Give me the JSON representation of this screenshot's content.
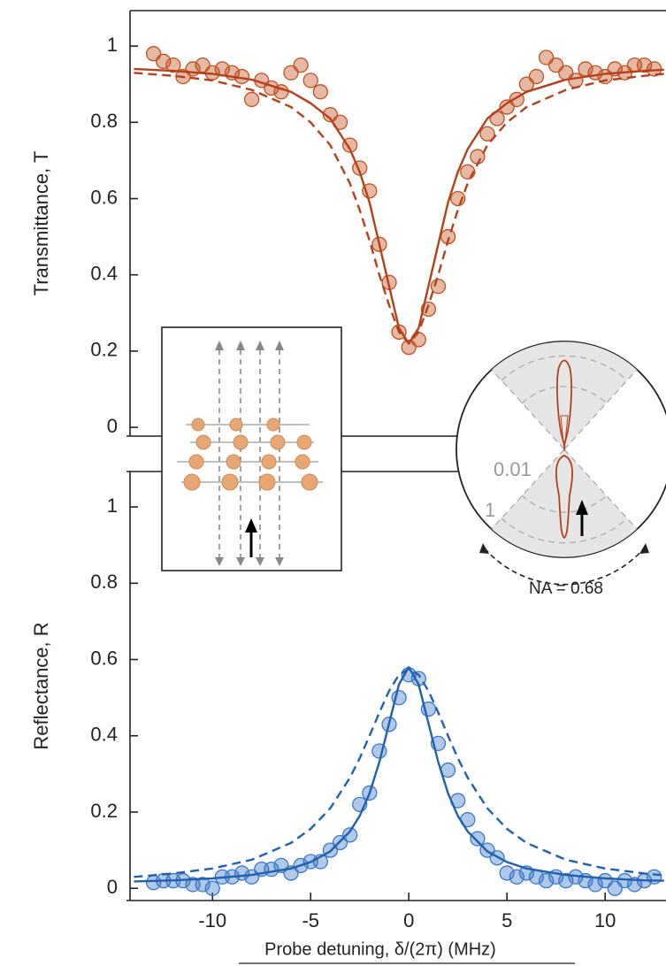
{
  "chart_data": [
    {
      "type": "line",
      "ylabel": "Transmittance, T",
      "xlim": [
        -14.2,
        13.1
      ],
      "ylim": [
        -0.023,
        1.093
      ],
      "yticks": [
        0,
        0.2,
        0.4,
        0.6,
        0.8,
        1.0
      ],
      "series": [
        {
          "color": "#c0501f",
          "linestyle": "none",
          "x": [
            -13,
            -12.5,
            -12,
            -11.5,
            -11,
            -10.5,
            -10,
            -9.5,
            -9,
            -8.5,
            -8,
            -7.5,
            -7,
            -6.5,
            -6,
            -5.5,
            -5,
            -4.5,
            -4,
            -3.5,
            -3,
            -2.5,
            -2,
            -1.5,
            -1,
            -0.5,
            0,
            0.5,
            1,
            1.5,
            2,
            2.5,
            3,
            3.5,
            4,
            4.5,
            5,
            5.5,
            6,
            6.5,
            7,
            7.5,
            8,
            8.5,
            9,
            9.5,
            10,
            10.5,
            11,
            11.5,
            12,
            12.5
          ],
          "values": [
            0.98,
            0.96,
            0.95,
            0.92,
            0.94,
            0.95,
            0.93,
            0.94,
            0.93,
            0.92,
            0.86,
            0.91,
            0.89,
            0.88,
            0.93,
            0.95,
            0.91,
            0.88,
            0.82,
            0.8,
            0.74,
            0.68,
            0.62,
            0.48,
            0.38,
            0.25,
            0.21,
            0.23,
            0.31,
            0.37,
            0.5,
            0.6,
            0.67,
            0.71,
            0.77,
            0.81,
            0.84,
            0.86,
            0.9,
            0.92,
            0.97,
            0.95,
            0.93,
            0.91,
            0.94,
            0.93,
            0.92,
            0.94,
            0.93,
            0.95,
            0.95,
            0.94
          ]
        },
        {
          "color": "#b5401a",
          "linestyle": "solid",
          "x": [
            -14,
            -12,
            -10,
            -8,
            -6,
            -5,
            -4,
            -3,
            -2.5,
            -2,
            -1.5,
            -1,
            -0.5,
            0,
            0.5,
            1,
            1.5,
            2,
            2.5,
            3,
            4,
            5,
            6,
            8,
            10,
            12,
            13
          ],
          "values": [
            0.94,
            0.935,
            0.927,
            0.912,
            0.88,
            0.85,
            0.81,
            0.73,
            0.67,
            0.59,
            0.48,
            0.37,
            0.26,
            0.22,
            0.26,
            0.37,
            0.48,
            0.59,
            0.67,
            0.73,
            0.81,
            0.85,
            0.88,
            0.912,
            0.927,
            0.935,
            0.938
          ]
        },
        {
          "color": "#b5401a",
          "linestyle": "dashed",
          "x": [
            -14,
            -12,
            -10,
            -8,
            -6,
            -5,
            -4,
            -3,
            -2.5,
            -2,
            -1.5,
            -1,
            -0.5,
            0,
            0.5,
            1,
            1.5,
            2,
            2.5,
            3,
            4,
            5,
            6,
            8,
            10,
            12,
            13
          ],
          "values": [
            0.93,
            0.922,
            0.91,
            0.885,
            0.84,
            0.8,
            0.74,
            0.64,
            0.57,
            0.49,
            0.4,
            0.32,
            0.25,
            0.22,
            0.25,
            0.32,
            0.4,
            0.49,
            0.57,
            0.64,
            0.74,
            0.8,
            0.84,
            0.885,
            0.91,
            0.922,
            0.927
          ]
        }
      ]
    },
    {
      "type": "line",
      "ylabel": "Reflectance, R",
      "xlabel": "Probe detuning, δ/(2π) (MHz)",
      "xlim": [
        -14.2,
        13.1
      ],
      "ylim": [
        -0.032,
        1.093
      ],
      "xticks": [
        -10,
        -5,
        0,
        5,
        10
      ],
      "yticks": [
        0,
        0.2,
        0.4,
        0.6,
        0.8,
        1.0
      ],
      "series": [
        {
          "color": "#3a78c8",
          "linestyle": "none",
          "x": [
            -13,
            -12.5,
            -12,
            -11.5,
            -11,
            -10.5,
            -10,
            -9.5,
            -9,
            -8.5,
            -8,
            -7.5,
            -7,
            -6.5,
            -6,
            -5.5,
            -5,
            -4.5,
            -4,
            -3.5,
            -3,
            -2.5,
            -2,
            -1.5,
            -1,
            -0.5,
            0,
            0.5,
            1,
            1.5,
            2,
            2.5,
            3,
            3.5,
            4,
            4.5,
            5,
            5.5,
            6,
            6.5,
            7,
            7.5,
            8,
            8.5,
            9,
            9.5,
            10,
            10.5,
            11,
            11.5,
            12,
            12.5
          ],
          "values": [
            0.015,
            0.02,
            0.02,
            0.02,
            0.01,
            0.01,
            0.0,
            0.03,
            0.03,
            0.04,
            0.03,
            0.05,
            0.05,
            0.06,
            0.04,
            0.06,
            0.07,
            0.07,
            0.1,
            0.12,
            0.14,
            0.22,
            0.25,
            0.36,
            0.43,
            0.5,
            0.56,
            0.55,
            0.47,
            0.38,
            0.31,
            0.23,
            0.18,
            0.13,
            0.1,
            0.08,
            0.04,
            0.03,
            0.04,
            0.03,
            0.02,
            0.03,
            0.02,
            0.03,
            0.02,
            0.01,
            0.02,
            0.0,
            0.02,
            0.01,
            0.02,
            0.03
          ]
        },
        {
          "color": "#2060b0",
          "linestyle": "solid",
          "x": [
            -14,
            -12,
            -10,
            -8,
            -6,
            -5,
            -4,
            -3,
            -2.5,
            -2,
            -1.5,
            -1,
            -0.5,
            0,
            0.5,
            1,
            1.5,
            2,
            2.5,
            3,
            4,
            5,
            6,
            8,
            10,
            12,
            13
          ],
          "values": [
            0.018,
            0.021,
            0.026,
            0.035,
            0.052,
            0.069,
            0.097,
            0.149,
            0.19,
            0.249,
            0.331,
            0.433,
            0.535,
            0.58,
            0.535,
            0.433,
            0.331,
            0.249,
            0.19,
            0.149,
            0.097,
            0.069,
            0.052,
            0.035,
            0.026,
            0.021,
            0.02
          ]
        },
        {
          "color": "#2060b0",
          "linestyle": "dashed",
          "x": [
            -14,
            -12,
            -10,
            -8,
            -6,
            -5,
            -4,
            -3,
            -2.5,
            -2,
            -1.5,
            -1,
            -0.5,
            0,
            0.5,
            1,
            1.5,
            2,
            2.5,
            3,
            4,
            5,
            6,
            8,
            10,
            12,
            13
          ],
          "values": [
            0.03,
            0.039,
            0.052,
            0.075,
            0.119,
            0.156,
            0.21,
            0.29,
            0.341,
            0.4,
            0.461,
            0.518,
            0.56,
            0.575,
            0.56,
            0.518,
            0.461,
            0.4,
            0.341,
            0.29,
            0.21,
            0.156,
            0.119,
            0.075,
            0.052,
            0.039,
            0.034
          ]
        }
      ]
    }
  ],
  "inset": {
    "polar_labels": [
      "0.01",
      "1"
    ],
    "na_label": "NA = 0.68"
  }
}
